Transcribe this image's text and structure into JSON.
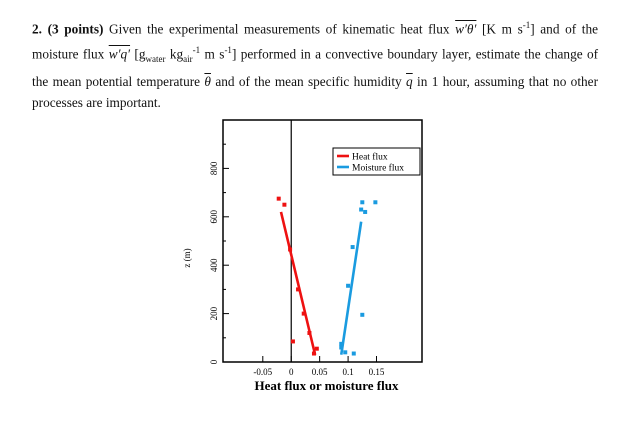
{
  "problem": {
    "number": "2.",
    "points": "(3 points)",
    "part1": "Given the experimental measurements of kinematic heat flux",
    "heat_flux_symbol": "w′θ′",
    "part2": "[K m s",
    "part2_sup": "-1",
    "part3": "] and of the moisture flux",
    "moisture_flux_symbol": "w′q′",
    "part4": "[g",
    "sub_water": "water",
    "kg_text": "kg",
    "sub_air": "air",
    "part5": "m s",
    "part6": "] performed in a convective boundary layer, estimate the change of the mean potential temperature",
    "theta_bar": "θ",
    "part7": "and of the mean specific humidity",
    "q_bar": "q",
    "part8": "in 1 hour, assuming that no other processes are important."
  },
  "chart_data": {
    "type": "scatter",
    "title": "",
    "xlabel": "Heat flux or moisture flux",
    "ylabel": "z (m)",
    "xlim": [
      -0.12,
      0.23
    ],
    "ylim": [
      0,
      1000
    ],
    "x_ticks": [
      "-0.05",
      "0",
      "0.05",
      "0.1",
      "0.15"
    ],
    "x_tick_values": [
      -0.05,
      0,
      0.05,
      0.1,
      0.15
    ],
    "y_ticks": [
      "0",
      "200",
      "400",
      "600",
      "800"
    ],
    "y_tick_values": [
      0,
      200,
      400,
      600,
      800
    ],
    "legend_position": "top-right",
    "series": [
      {
        "name": "Heat flux",
        "color": "#ee1111",
        "points": [
          [
            -0.022,
            675
          ],
          [
            -0.012,
            650
          ],
          [
            -0.002,
            465
          ],
          [
            0.012,
            300
          ],
          [
            0.022,
            200
          ],
          [
            0.032,
            120
          ],
          [
            0.003,
            85
          ],
          [
            0.045,
            55
          ],
          [
            0.04,
            35
          ]
        ],
        "fit_line": [
          [
            -0.018,
            620
          ],
          [
            0.042,
            30
          ]
        ]
      },
      {
        "name": "Moisture flux",
        "color": "#1a9be0",
        "points": [
          [
            0.125,
            660
          ],
          [
            0.148,
            660
          ],
          [
            0.123,
            630
          ],
          [
            0.13,
            620
          ],
          [
            0.108,
            475
          ],
          [
            0.1,
            315
          ],
          [
            0.125,
            195
          ],
          [
            0.088,
            60
          ],
          [
            0.088,
            75
          ],
          [
            0.095,
            40
          ],
          [
            0.11,
            35
          ]
        ],
        "fit_line": [
          [
            0.123,
            580
          ],
          [
            0.088,
            30
          ]
        ]
      }
    ]
  }
}
